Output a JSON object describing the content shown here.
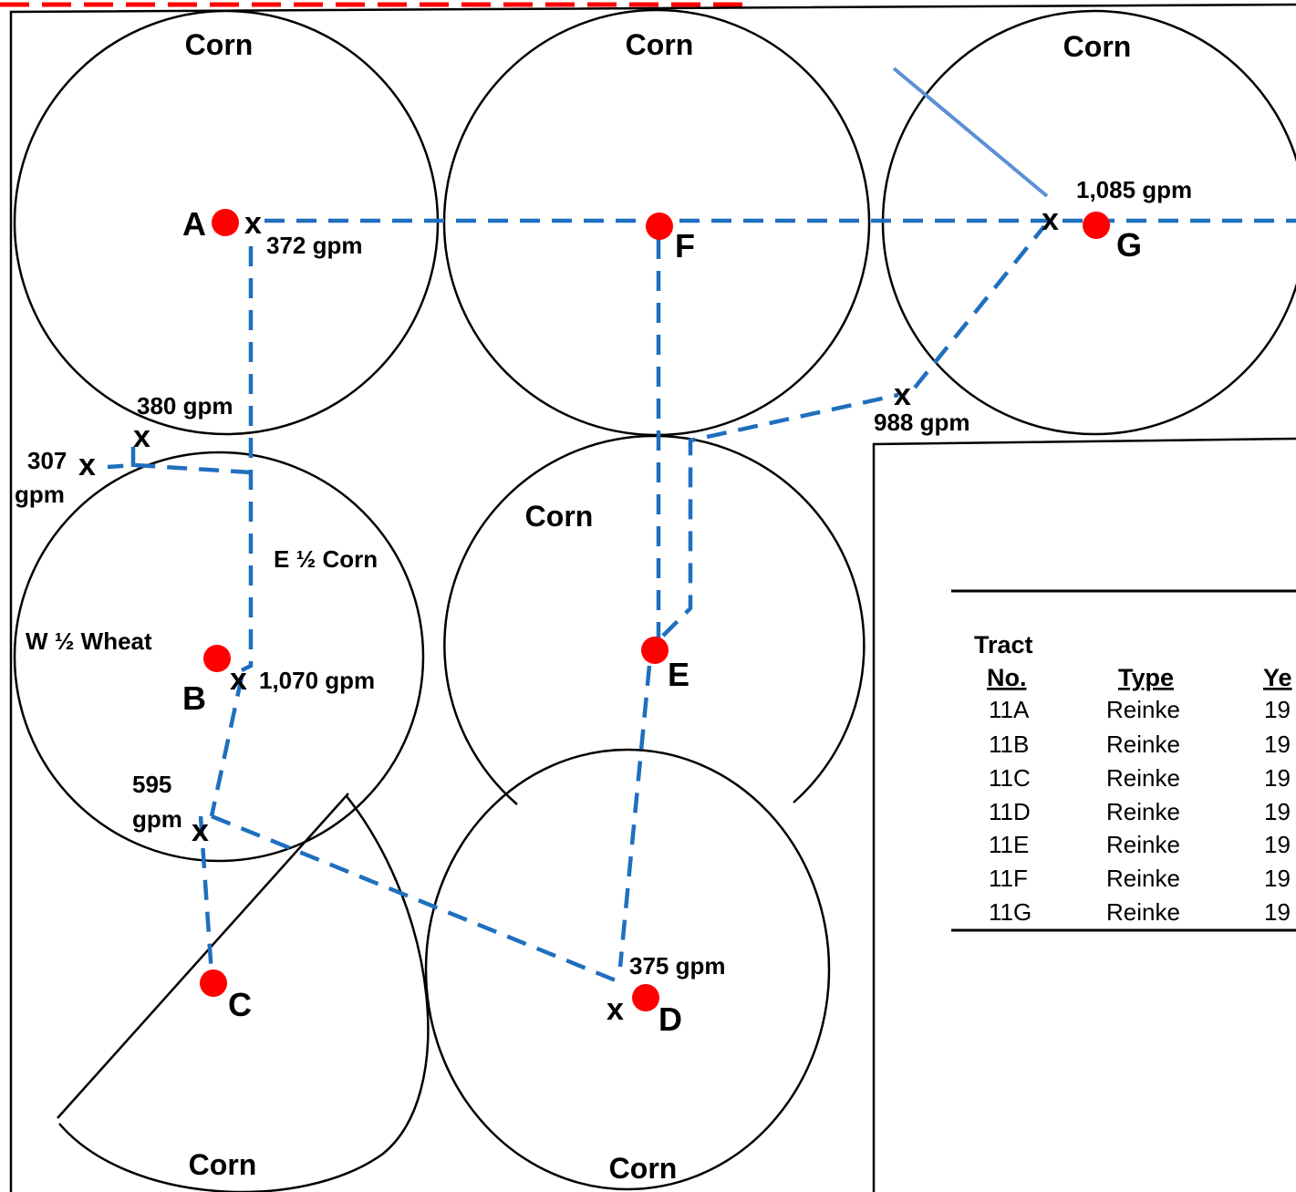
{
  "colors": {
    "pipeline": "#1f6fbf",
    "pivot_point": "#ff0000",
    "solid_line": "#5b8fd6",
    "border_dash": "#ff0000",
    "outline": "#000000"
  },
  "fields": {
    "top_left_crop": "Corn",
    "top_center_crop": "Corn",
    "top_right_crop": "Corn",
    "middle_center_crop": "Corn",
    "bottom_left_crop": "Corn",
    "bottom_center_crop": "Corn",
    "b_east_half": "E ½ Corn",
    "b_west_half": "W ½ Wheat"
  },
  "pivots": {
    "A": "A",
    "B": "B",
    "C": "C",
    "D": "D",
    "E": "E",
    "F": "F",
    "G": "G"
  },
  "well_marker": "x",
  "wells": {
    "a": "372 gpm",
    "n1": "380 gpm",
    "n2_num": "307",
    "n2_unit": "gpm",
    "b": "1,070 gpm",
    "s_num": "595",
    "s_unit": "gpm",
    "d": "375 gpm",
    "g": "1,085 gpm",
    "m": "988 gpm"
  },
  "table": {
    "header_line1": "Tract",
    "columns": [
      "No.",
      "Type",
      "Ye"
    ],
    "rows": [
      {
        "tract": "11A",
        "type": "Reinke",
        "year": "19"
      },
      {
        "tract": "11B",
        "type": "Reinke",
        "year": "19"
      },
      {
        "tract": "11C",
        "type": "Reinke",
        "year": "19"
      },
      {
        "tract": "11D",
        "type": "Reinke",
        "year": "19"
      },
      {
        "tract": "11E",
        "type": "Reinke",
        "year": "19"
      },
      {
        "tract": "11F",
        "type": "Reinke",
        "year": "19"
      },
      {
        "tract": "11G",
        "type": "Reinke",
        "year": "19"
      }
    ]
  }
}
